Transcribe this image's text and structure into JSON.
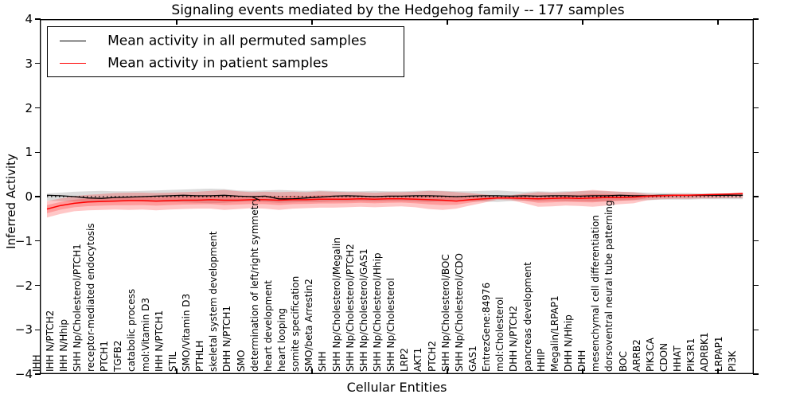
{
  "chart_data": {
    "type": "line",
    "title": "Signaling events mediated by the Hedgehog family -- 177 samples",
    "xlabel": "Cellular Entities",
    "ylabel": "Inferred Activity",
    "ylim": [
      -4,
      4
    ],
    "yticks": [
      4,
      3,
      2,
      1,
      0,
      -1,
      -2,
      -3,
      -4
    ],
    "grid": false,
    "legend_position": "upper left",
    "zero_line": {
      "y": 0,
      "style": "dotted",
      "color": "#000000"
    },
    "categories": [
      "IHH",
      "IHH N/PTCH2",
      "IHH N/Hhip",
      "SHH Np/Cholesterol/PTCH1",
      "receptor-mediated endocytosis",
      "PTCH1",
      "TGFB2",
      "catabolic process",
      "mol:Vitamin D3",
      "IHH N/PTCH1",
      "STIL",
      "SMO/Vitamin D3",
      "PTHLH",
      "skeletal system development",
      "DHH N/PTCH1",
      "SMO",
      "determination of left/right symmetry",
      "heart development",
      "heart looping",
      "somite specification",
      "SMO/beta Arrestin2",
      "SHH",
      "SHH Np/Cholesterol/Megalin",
      "SHH Np/Cholesterol/PTCH2",
      "SHH Np/Cholesterol/GAS1",
      "SHH Np/Cholesterol/Hhip",
      "SHH Np/Cholesterol",
      "LRP2",
      "AKT1",
      "PTCH2",
      "SHH Np/Cholesterol/BOC",
      "SHH Np/Cholesterol/CDO",
      "GAS1",
      "EntrezGene:84976",
      "mol:Cholesterol",
      "DHH N/PTCH2",
      "pancreas development",
      "HHIP",
      "Megalin/LRPAP1",
      "DHH N/Hhip",
      "DHH",
      "mesenchymal cell differentiation",
      "dorsoventral neural tube patterning",
      "BOC",
      "ARRB2",
      "PIK3CA",
      "CDON",
      "HHAT",
      "PIK3R1",
      "ADRBK1",
      "LRPAP1",
      "PI3K"
    ],
    "series": [
      {
        "name": "Mean activity in all permuted samples",
        "color": "#000000",
        "values": [
          0.03,
          0.02,
          0.0,
          -0.03,
          -0.04,
          -0.02,
          -0.01,
          0.0,
          0.01,
          0.02,
          0.03,
          0.02,
          0.02,
          0.03,
          0.01,
          0.0,
          0.01,
          -0.05,
          -0.05,
          -0.03,
          -0.01,
          0.01,
          0.02,
          0.01,
          0.0,
          0.01,
          0.01,
          0.02,
          0.02,
          0.01,
          0.0,
          0.01,
          0.02,
          0.02,
          0.01,
          0.02,
          0.01,
          0.02,
          0.02,
          0.01,
          0.02,
          0.02,
          0.03,
          0.02,
          0.02,
          0.03,
          0.03,
          0.03,
          0.03,
          0.03,
          0.03,
          0.03
        ],
        "band": {
          "color": "#000000",
          "alpha": 0.14,
          "upper": [
            0.07,
            0.09,
            0.11,
            0.12,
            0.13,
            0.12,
            0.12,
            0.13,
            0.14,
            0.15,
            0.16,
            0.17,
            0.18,
            0.17,
            0.14,
            0.13,
            0.14,
            0.15,
            0.14,
            0.13,
            0.14,
            0.13,
            0.12,
            0.12,
            0.13,
            0.12,
            0.12,
            0.13,
            0.14,
            0.13,
            0.12,
            0.12,
            0.13,
            0.14,
            0.12,
            0.11,
            0.12,
            0.11,
            0.12,
            0.12,
            0.13,
            0.12,
            0.11,
            0.1,
            0.09,
            0.08,
            0.08,
            0.08,
            0.07,
            0.07,
            0.07,
            0.08
          ],
          "lower": [
            -0.09,
            -0.1,
            -0.11,
            -0.12,
            -0.12,
            -0.11,
            -0.1,
            -0.11,
            -0.12,
            -0.12,
            -0.13,
            -0.14,
            -0.15,
            -0.14,
            -0.12,
            -0.11,
            -0.12,
            -0.14,
            -0.13,
            -0.12,
            -0.12,
            -0.11,
            -0.11,
            -0.1,
            -0.11,
            -0.1,
            -0.1,
            -0.11,
            -0.12,
            -0.11,
            -0.1,
            -0.1,
            -0.11,
            -0.12,
            -0.1,
            -0.09,
            -0.1,
            -0.09,
            -0.1,
            -0.1,
            -0.11,
            -0.1,
            -0.09,
            -0.08,
            -0.08,
            -0.07,
            -0.07,
            -0.07,
            -0.06,
            -0.06,
            -0.06,
            -0.06
          ]
        }
      },
      {
        "name": "Mean activity in patient samples",
        "color": "#ff0000",
        "values": [
          -0.28,
          -0.2,
          -0.15,
          -0.12,
          -0.11,
          -0.1,
          -0.09,
          -0.09,
          -0.1,
          -0.09,
          -0.08,
          -0.08,
          -0.07,
          -0.08,
          -0.08,
          -0.07,
          -0.07,
          -0.08,
          -0.07,
          -0.07,
          -0.06,
          -0.06,
          -0.06,
          -0.05,
          -0.06,
          -0.05,
          -0.05,
          -0.06,
          -0.07,
          -0.08,
          -0.1,
          -0.07,
          -0.05,
          -0.03,
          -0.03,
          -0.04,
          -0.05,
          -0.04,
          -0.03,
          -0.04,
          -0.03,
          -0.02,
          -0.02,
          -0.01,
          0.01,
          0.02,
          0.03,
          0.03,
          0.04,
          0.05,
          0.06,
          0.07
        ],
        "band": {
          "color": "#ff0000",
          "alpha": 0.22,
          "upper": [
            -0.1,
            -0.04,
            0.01,
            0.04,
            0.06,
            0.08,
            0.09,
            0.09,
            0.08,
            0.09,
            0.1,
            0.11,
            0.13,
            0.15,
            0.12,
            0.1,
            0.11,
            0.1,
            0.11,
            0.1,
            0.12,
            0.11,
            0.1,
            0.1,
            0.09,
            0.1,
            0.1,
            0.11,
            0.13,
            0.12,
            0.1,
            0.08,
            0.05,
            0.02,
            0.03,
            0.07,
            0.1,
            0.09,
            0.1,
            0.12,
            0.15,
            0.13,
            0.11,
            0.1,
            0.06,
            0.05,
            0.06,
            0.06,
            0.06,
            0.07,
            0.07,
            0.09
          ],
          "lower": [
            -0.47,
            -0.39,
            -0.33,
            -0.31,
            -0.3,
            -0.29,
            -0.3,
            -0.29,
            -0.31,
            -0.29,
            -0.28,
            -0.27,
            -0.27,
            -0.3,
            -0.28,
            -0.26,
            -0.27,
            -0.3,
            -0.27,
            -0.26,
            -0.25,
            -0.25,
            -0.24,
            -0.23,
            -0.24,
            -0.23,
            -0.22,
            -0.24,
            -0.28,
            -0.3,
            -0.27,
            -0.2,
            -0.14,
            -0.07,
            -0.08,
            -0.15,
            -0.23,
            -0.22,
            -0.2,
            -0.21,
            -0.23,
            -0.2,
            -0.17,
            -0.15,
            -0.08,
            -0.06,
            -0.05,
            -0.05,
            -0.04,
            -0.04,
            -0.03,
            -0.03
          ]
        }
      }
    ]
  }
}
